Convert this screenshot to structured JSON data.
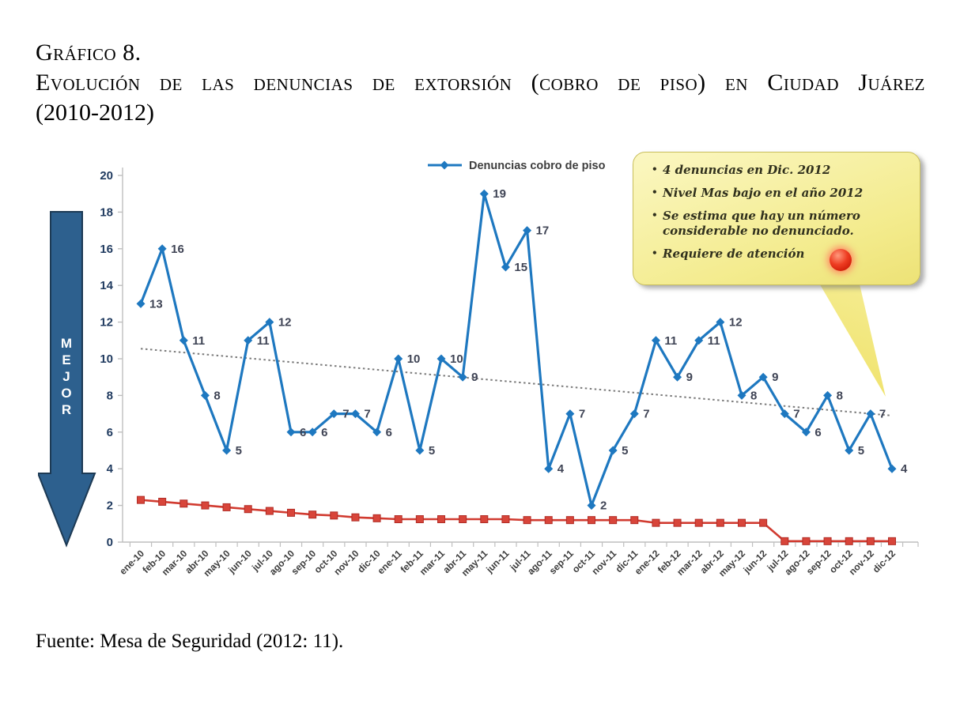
{
  "page": {
    "title_label": "Gráfico 8.",
    "title_main": "Evolución de las denuncias de extorsión (cobro de piso) en Ciudad Juárez",
    "title_years": "(2010-2012)",
    "source": "Fuente: Mesa de Seguridad (2012: 11)."
  },
  "arrow": {
    "label": "MEJOR",
    "fill_color": "#2D608E",
    "outline_color": "#1D3A54"
  },
  "callout": {
    "bullets": [
      "4 denuncias en Dic. 2012",
      "Nivel Mas bajo en el año 2012",
      "Se estima que hay un número considerable no denunciado.",
      "Requiere de atención"
    ],
    "background_color": "#F3EB8C",
    "dot_color": "#EE3D22"
  },
  "chart_data": {
    "type": "line",
    "title": "",
    "xlabel": "",
    "ylabel": "",
    "ylim": [
      0,
      20
    ],
    "ytick_step": 2,
    "grid": false,
    "legend_position": "top",
    "categories": [
      "ene-10",
      "feb-10",
      "mar-10",
      "abr-10",
      "may-10",
      "jun-10",
      "jul-10",
      "ago-10",
      "sep-10",
      "oct-10",
      "nov-10",
      "dic-10",
      "ene-11",
      "feb-11",
      "mar-11",
      "abr-11",
      "may-11",
      "jun-11",
      "jul-11",
      "ago-11",
      "sep-11",
      "oct-11",
      "nov-11",
      "dic-11",
      "ene-12",
      "feb-12",
      "mar-12",
      "abr-12",
      "may-12",
      "jun-12",
      "jul-12",
      "ago-12",
      "sep-12",
      "oct-12",
      "nov-12",
      "dic-12"
    ],
    "series": [
      {
        "name": "Denuncias cobro de piso",
        "color": "#1E78C0",
        "marker": "diamond",
        "data_labels": true,
        "values": [
          13,
          16,
          11,
          8,
          5,
          11,
          12,
          6,
          6,
          7,
          7,
          6,
          10,
          5,
          10,
          9,
          19,
          15,
          17,
          4,
          7,
          2,
          5,
          7,
          11,
          9,
          11,
          12,
          8,
          9,
          7,
          6,
          8,
          5,
          7,
          4
        ]
      },
      {
        "name": "",
        "color": "#D13B30",
        "marker": "square",
        "data_labels": false,
        "values": [
          2.3,
          2.2,
          2.1,
          2.0,
          1.9,
          1.8,
          1.7,
          1.6,
          1.5,
          1.45,
          1.35,
          1.3,
          1.25,
          1.25,
          1.25,
          1.25,
          1.25,
          1.25,
          1.2,
          1.2,
          1.2,
          1.2,
          1.2,
          1.2,
          1.05,
          1.05,
          1.05,
          1.05,
          1.05,
          1.05,
          0.05,
          0.05,
          0.05,
          0.05,
          0.05,
          0.05
        ]
      }
    ],
    "trendline": {
      "style": "dotted",
      "color": "#7A7A7A",
      "start_value": 10.55,
      "end_value": 6.9
    },
    "label_color": "#3F4455",
    "ytick_color": "#1F3A5F",
    "xtick_color": "#3C3C3C",
    "axis_color": "#BFBFBF"
  }
}
